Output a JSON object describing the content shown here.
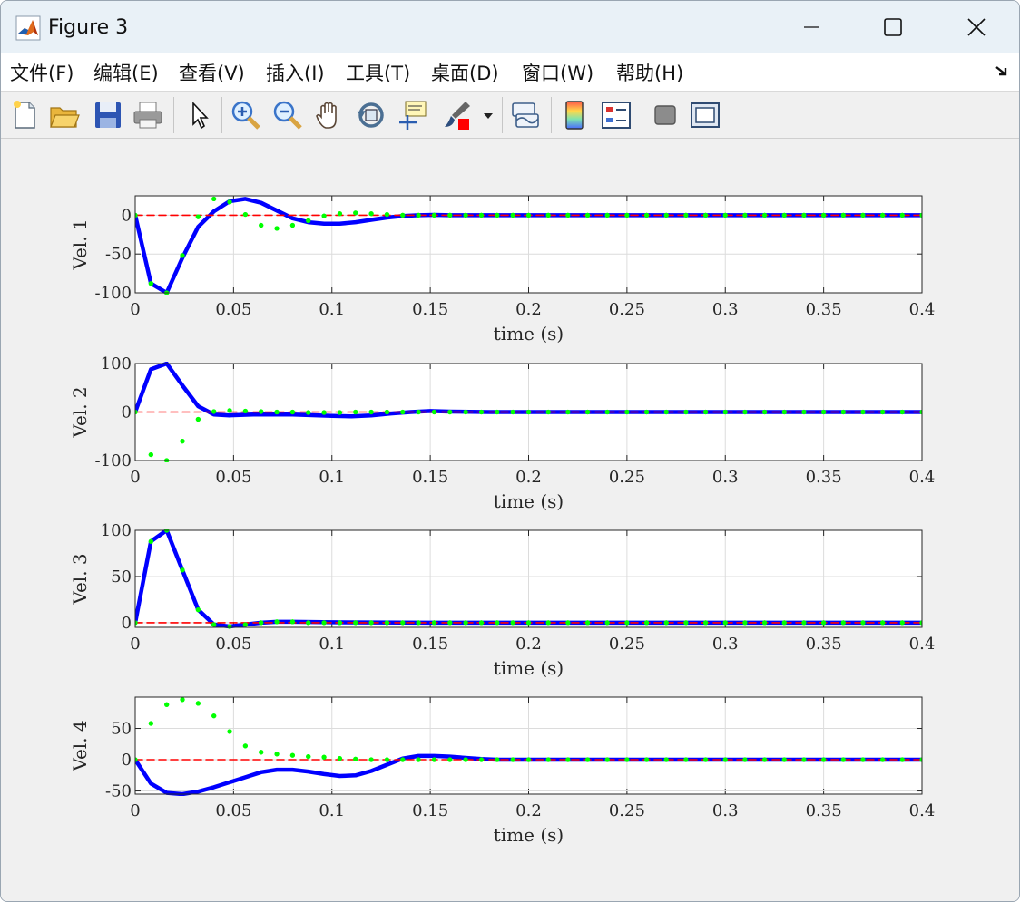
{
  "window": {
    "title": "Figure 3",
    "icon": "matlab-logo-icon",
    "controls": [
      "minimize-icon",
      "maximize-icon",
      "close-icon"
    ]
  },
  "menu": {
    "items": [
      "文件(F)",
      "编辑(E)",
      "查看(V)",
      "插入(I)",
      "工具(T)",
      "桌面(D)",
      "窗口(W)",
      "帮助(H)"
    ],
    "dock_icon": "dock-arrow-icon"
  },
  "toolbar": {
    "icons": [
      "new-figure-icon",
      "open-file-icon",
      "save-icon",
      "print-icon",
      "edit-plot-arrow-icon",
      "zoom-in-icon",
      "zoom-out-icon",
      "pan-hand-icon",
      "rotate-3d-icon",
      "data-cursor-icon",
      "brush-icon",
      "brush-dropdown-icon",
      "link-plot-icon",
      "colorbar-icon",
      "legend-icon",
      "hide-plot-tools-icon",
      "show-plot-tools-icon"
    ]
  },
  "colors": {
    "actual": "#0000ff",
    "reference": "#ff0000",
    "estimate": "#00ff00",
    "grid": "#dcdcdc",
    "axes_bg": "#ffffff"
  },
  "chart_data": [
    {
      "type": "line",
      "xlabel": "time (s)",
      "ylabel": "Vel. 1",
      "xlim": [
        0,
        0.4
      ],
      "ylim": [
        -100,
        25
      ],
      "xticks": [
        "0",
        "0.05",
        "0.1",
        "0.15",
        "0.2",
        "0.25",
        "0.3",
        "0.35",
        "0.4"
      ],
      "yticks": [
        -100,
        -50,
        0
      ],
      "grid": true,
      "series": [
        {
          "style": "solid-thick",
          "color": "#0000ff",
          "x": [
            0,
            0.008,
            0.016,
            0.024,
            0.032,
            0.04,
            0.048,
            0.056,
            0.064,
            0.072,
            0.08,
            0.088,
            0.096,
            0.104,
            0.112,
            0.12,
            0.128,
            0.136,
            0.144,
            0.152,
            0.16,
            0.2,
            0.25,
            0.3,
            0.35,
            0.4
          ],
          "y": [
            0,
            -88,
            -100,
            -55,
            -15,
            5,
            18,
            21,
            16,
            6,
            -4,
            -9,
            -11,
            -11,
            -9,
            -6,
            -3,
            -1,
            0,
            0.5,
            0,
            0,
            0,
            0,
            0,
            0
          ]
        },
        {
          "style": "dashed",
          "color": "#ff0000",
          "x": [
            0,
            0.4
          ],
          "y": [
            0,
            0
          ]
        },
        {
          "style": "dots",
          "color": "#00ff00",
          "x": [
            0,
            0.008,
            0.016,
            0.024,
            0.032,
            0.04,
            0.048,
            0.056,
            0.064,
            0.072,
            0.08,
            0.088,
            0.096,
            0.104,
            0.112,
            0.12,
            0.128,
            0.136,
            0.144,
            0.152,
            0.16,
            0.168,
            0.176,
            0.184,
            0.192,
            0.2,
            0.21,
            0.22,
            0.23,
            0.24,
            0.25,
            0.26,
            0.27,
            0.28,
            0.29,
            0.3,
            0.31,
            0.32,
            0.33,
            0.34,
            0.35,
            0.36,
            0.37,
            0.38,
            0.39,
            0.4
          ],
          "y": [
            0,
            -88,
            -100,
            -52,
            -2,
            21,
            17,
            1,
            -13,
            -17,
            -13,
            -7,
            -1,
            2,
            3,
            2,
            1,
            0,
            0,
            0,
            0,
            0,
            0,
            0,
            0,
            0,
            0,
            0,
            0,
            0,
            0,
            0,
            0,
            0,
            0,
            0,
            0,
            0,
            0,
            0,
            0,
            0,
            0,
            0,
            0,
            0
          ]
        }
      ]
    },
    {
      "type": "line",
      "xlabel": "time (s)",
      "ylabel": "Vel. 2",
      "xlim": [
        0,
        0.4
      ],
      "ylim": [
        -100,
        100
      ],
      "xticks": [
        "0",
        "0.05",
        "0.1",
        "0.15",
        "0.2",
        "0.25",
        "0.3",
        "0.35",
        "0.4"
      ],
      "yticks": [
        -100,
        0,
        100
      ],
      "grid": true,
      "series": [
        {
          "style": "solid-thick",
          "color": "#0000ff",
          "x": [
            0,
            0.008,
            0.016,
            0.024,
            0.032,
            0.04,
            0.048,
            0.06,
            0.08,
            0.1,
            0.11,
            0.12,
            0.13,
            0.14,
            0.15,
            0.16,
            0.17,
            0.18,
            0.2,
            0.25,
            0.3,
            0.35,
            0.4
          ],
          "y": [
            0,
            88,
            100,
            55,
            12,
            -5,
            -7,
            -5,
            -5,
            -8,
            -9,
            -7,
            -3,
            0,
            2,
            1,
            0.5,
            0,
            0,
            0,
            0,
            0,
            0
          ]
        },
        {
          "style": "dashed",
          "color": "#ff0000",
          "x": [
            0,
            0.4
          ],
          "y": [
            0,
            0
          ]
        },
        {
          "style": "dots",
          "color": "#00ff00",
          "x": [
            0,
            0.008,
            0.016,
            0.024,
            0.032,
            0.04,
            0.048,
            0.056,
            0.064,
            0.072,
            0.08,
            0.088,
            0.096,
            0.104,
            0.112,
            0.12,
            0.128,
            0.136,
            0.144,
            0.152,
            0.16,
            0.168,
            0.176,
            0.184,
            0.192,
            0.2,
            0.21,
            0.22,
            0.23,
            0.24,
            0.25,
            0.26,
            0.27,
            0.28,
            0.29,
            0.3,
            0.31,
            0.32,
            0.33,
            0.34,
            0.35,
            0.36,
            0.37,
            0.38,
            0.39,
            0.4
          ],
          "y": [
            0,
            -88,
            -100,
            -60,
            -15,
            1,
            3,
            2,
            1,
            0,
            0,
            -1,
            -1,
            -1,
            0,
            0,
            0,
            0,
            0,
            0,
            0,
            0,
            0,
            0,
            0,
            0,
            0,
            0,
            0,
            0,
            0,
            0,
            0,
            0,
            0,
            0,
            0,
            0,
            0,
            0,
            0,
            0,
            0,
            0,
            0,
            0
          ]
        }
      ]
    },
    {
      "type": "line",
      "xlabel": "time (s)",
      "ylabel": "Vel. 3",
      "xlim": [
        0,
        0.4
      ],
      "ylim": [
        -5,
        100
      ],
      "xticks": [
        "0",
        "0.05",
        "0.1",
        "0.15",
        "0.2",
        "0.25",
        "0.3",
        "0.35",
        "0.4"
      ],
      "yticks": [
        0,
        50,
        100
      ],
      "grid": true,
      "series": [
        {
          "style": "solid-thick",
          "color": "#0000ff",
          "x": [
            0,
            0.008,
            0.016,
            0.024,
            0.032,
            0.04,
            0.048,
            0.056,
            0.064,
            0.072,
            0.08,
            0.1,
            0.15,
            0.2,
            0.25,
            0.3,
            0.35,
            0.4
          ],
          "y": [
            0,
            88,
            100,
            57,
            14,
            -2,
            -4,
            -2,
            0,
            1,
            1,
            0.5,
            0,
            0,
            0,
            0,
            0,
            0
          ]
        },
        {
          "style": "dashed",
          "color": "#ff0000",
          "x": [
            0,
            0.4
          ],
          "y": [
            0,
            0
          ]
        },
        {
          "style": "dots",
          "color": "#00ff00",
          "x": [
            0,
            0.008,
            0.016,
            0.024,
            0.032,
            0.04,
            0.048,
            0.056,
            0.064,
            0.072,
            0.08,
            0.088,
            0.096,
            0.104,
            0.112,
            0.12,
            0.128,
            0.136,
            0.144,
            0.152,
            0.16,
            0.168,
            0.176,
            0.184,
            0.192,
            0.2,
            0.21,
            0.22,
            0.23,
            0.24,
            0.25,
            0.26,
            0.27,
            0.28,
            0.29,
            0.3,
            0.31,
            0.32,
            0.33,
            0.34,
            0.35,
            0.36,
            0.37,
            0.38,
            0.39,
            0.4
          ],
          "y": [
            0,
            88,
            100,
            57,
            14,
            -2,
            -4,
            -2,
            0,
            1,
            1,
            0,
            0,
            0,
            0,
            0,
            0,
            0,
            0,
            0,
            0,
            0,
            0,
            0,
            0,
            0,
            0,
            0,
            0,
            0,
            0,
            0,
            0,
            0,
            0,
            0,
            0,
            0,
            0,
            0,
            0,
            0,
            0,
            0,
            0,
            0
          ]
        }
      ]
    },
    {
      "type": "line",
      "xlabel": "time (s)",
      "ylabel": "Vel. 4",
      "xlim": [
        0,
        0.4
      ],
      "ylim": [
        -55,
        100
      ],
      "xticks": [
        "0",
        "0.05",
        "0.1",
        "0.15",
        "0.2",
        "0.25",
        "0.3",
        "0.35",
        "0.4"
      ],
      "yticks": [
        -50,
        0,
        50
      ],
      "grid": true,
      "series": [
        {
          "style": "solid-thick",
          "color": "#0000ff",
          "x": [
            0,
            0.008,
            0.016,
            0.024,
            0.032,
            0.04,
            0.048,
            0.056,
            0.064,
            0.072,
            0.08,
            0.088,
            0.096,
            0.104,
            0.112,
            0.12,
            0.128,
            0.136,
            0.144,
            0.152,
            0.16,
            0.168,
            0.176,
            0.184,
            0.2,
            0.25,
            0.3,
            0.35,
            0.4
          ],
          "y": [
            0,
            -38,
            -53,
            -55,
            -51,
            -44,
            -36,
            -28,
            -20,
            -16,
            -16,
            -19,
            -23,
            -26,
            -25,
            -18,
            -8,
            2,
            6,
            6,
            5,
            3,
            1,
            0,
            0,
            0,
            0,
            0,
            0
          ]
        },
        {
          "style": "dashed",
          "color": "#ff0000",
          "x": [
            0,
            0.4
          ],
          "y": [
            0,
            0
          ]
        },
        {
          "style": "dots",
          "color": "#00ff00",
          "x": [
            0,
            0.008,
            0.016,
            0.024,
            0.032,
            0.04,
            0.048,
            0.056,
            0.064,
            0.072,
            0.08,
            0.088,
            0.096,
            0.104,
            0.112,
            0.12,
            0.128,
            0.136,
            0.144,
            0.152,
            0.16,
            0.168,
            0.176,
            0.184,
            0.192,
            0.2,
            0.21,
            0.22,
            0.23,
            0.24,
            0.25,
            0.26,
            0.27,
            0.28,
            0.29,
            0.3,
            0.31,
            0.32,
            0.33,
            0.34,
            0.35,
            0.36,
            0.37,
            0.38,
            0.39,
            0.4
          ],
          "y": [
            0,
            58,
            88,
            96,
            90,
            70,
            45,
            22,
            12,
            9,
            7,
            5,
            4,
            2,
            1,
            0,
            0,
            0,
            0,
            0,
            0,
            0,
            0,
            0,
            0,
            0,
            0,
            0,
            0,
            0,
            0,
            0,
            0,
            0,
            0,
            0,
            0,
            0,
            0,
            0,
            0,
            0,
            0,
            0,
            0,
            0
          ]
        }
      ]
    }
  ]
}
